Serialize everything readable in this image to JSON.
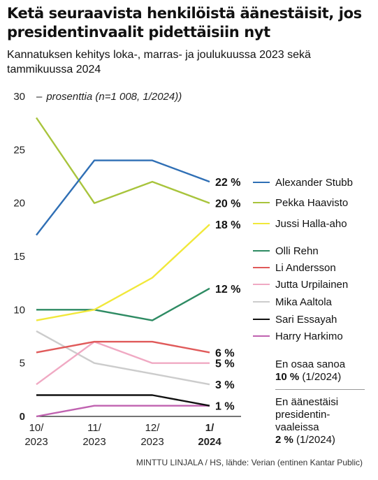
{
  "header": {
    "title": "Ketä seuraavista henkilöistä äänestäisit, jos presidentinvaalit pidettäisiin nyt",
    "subtitle": "Kannatuksen kehitys loka-, marras- ja joulukuussa 2023 sekä tammikuussa 2024",
    "note_dash": "–",
    "note": "prosenttia (n=1 008, 1/2024))"
  },
  "extras": [
    {
      "label": "En osaa sanoa",
      "value": "10 %",
      "date": "(1/2024)"
    },
    {
      "label": "En äänestäisi presidentin-vaaleissa",
      "value": "2 %",
      "date": "(1/2024)"
    }
  ],
  "source": "MINTTU LINJALA / HS, lähde: Verian (entinen Kantar Public)",
  "chart_data": {
    "type": "line",
    "categories": [
      {
        "line1": "10/",
        "line2": "2023",
        "bold": false
      },
      {
        "line1": "11/",
        "line2": "2023",
        "bold": false
      },
      {
        "line1": "12/",
        "line2": "2023",
        "bold": false
      },
      {
        "line1": "1/",
        "line2": "2024",
        "bold": true
      }
    ],
    "ylim": [
      0,
      30
    ],
    "yticks": [
      0,
      5,
      10,
      15,
      20,
      25,
      30
    ],
    "grid": false,
    "legend_position": "right",
    "series": [
      {
        "name": "Alexander Stubb",
        "color": "#2f6fb5",
        "values": [
          17,
          24,
          24,
          22
        ],
        "end_label": "22 %"
      },
      {
        "name": "Pekka Haavisto",
        "color": "#a8c43c",
        "values": [
          28,
          20,
          22,
          20
        ],
        "end_label": "20 %"
      },
      {
        "name": "Jussi Halla-aho",
        "color": "#f1e83a",
        "values": [
          9,
          10,
          13,
          18
        ],
        "end_label": "18 %"
      },
      {
        "name": "Olli Rehn",
        "color": "#2e8b63",
        "values": [
          10,
          10,
          9,
          12
        ],
        "end_label": "12 %"
      },
      {
        "name": "Li Andersson",
        "color": "#e05a5a",
        "values": [
          6,
          7,
          7,
          6
        ],
        "end_label": "6 %"
      },
      {
        "name": "Jutta Urpilainen",
        "color": "#f0a9c3",
        "values": [
          3,
          7,
          5,
          5
        ],
        "end_label": "5 %"
      },
      {
        "name": "Mika Aaltola",
        "color": "#cccccc",
        "values": [
          8,
          5,
          4,
          3
        ],
        "end_label": "3 %"
      },
      {
        "name": "Sari Essayah",
        "color": "#111111",
        "values": [
          2,
          2,
          2,
          1
        ],
        "end_label": ""
      },
      {
        "name": "Harry Harkimo",
        "color": "#c062b0",
        "values": [
          0,
          1,
          1,
          1
        ],
        "end_label": "1 %"
      }
    ]
  }
}
